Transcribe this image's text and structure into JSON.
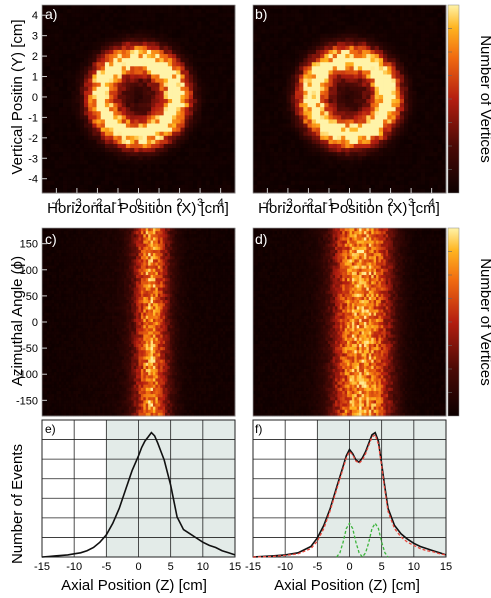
{
  "chart_data": [
    {
      "panel": "a)",
      "type": "heatmap",
      "xlabel": "Horizontal Position (X) [cm]",
      "ylabel": "Vertical Positin (Y) [cm]",
      "xlim": [
        -4.7,
        4.7
      ],
      "ylim": [
        -4.7,
        4.5
      ],
      "xticks": [
        -4,
        -3,
        -2,
        -1,
        0,
        1,
        2,
        3,
        4
      ],
      "yticks": [
        4,
        3,
        2,
        1,
        0,
        -1,
        -2,
        -3,
        -4
      ],
      "distribution": {
        "shape": "ring",
        "center": [
          0,
          0
        ],
        "radius_cm": 2.0,
        "width_cm": 0.65
      },
      "colorbar_label": "Number of Vertices"
    },
    {
      "panel": "b)",
      "type": "heatmap",
      "xlabel": "Horizontal Position (X) [cm]",
      "xlim": [
        -4.7,
        4.7
      ],
      "ylim": [
        -4.7,
        4.5
      ],
      "xticks": [
        -4,
        -3,
        -2,
        -1,
        0,
        1,
        2,
        3,
        4
      ],
      "distribution": {
        "shape": "ring",
        "center": [
          0,
          0
        ],
        "radius_cm": 2.0,
        "width_cm": 0.65
      }
    },
    {
      "panel": "c)",
      "type": "heatmap",
      "ylabel": "Azimuthal Angle (ϕ)",
      "xlim": [
        -15,
        15
      ],
      "ylim": [
        -180,
        180
      ],
      "yticks": [
        150,
        100,
        50,
        0,
        -50,
        -100,
        -150
      ],
      "distribution": {
        "shape": "band",
        "z_center_cm": 2.0,
        "z_width_cm": 2.6
      },
      "colorbar_label": "Number of Vertices"
    },
    {
      "panel": "d)",
      "type": "heatmap",
      "xlim": [
        -15,
        15
      ],
      "ylim": [
        -180,
        180
      ],
      "distribution": {
        "shape": "double-band",
        "z_centers_cm": [
          0,
          4
        ],
        "z_width_cm": 3.0
      }
    },
    {
      "panel": "e)",
      "type": "line",
      "xlabel": "Axial Position (Z) [cm]",
      "ylabel": "Number of Events",
      "xlim": [
        -15,
        15
      ],
      "ylim": [
        0,
        130
      ],
      "xticks": [
        -15,
        -10,
        -5,
        0,
        5,
        10,
        15
      ],
      "shaded_region": [
        -5,
        15
      ],
      "series": [
        {
          "color": "#111111",
          "x": [
            -15,
            -14,
            -13,
            -12,
            -11,
            -10,
            -9,
            -8,
            -7,
            -6,
            -5,
            -4,
            -3,
            -2,
            -1,
            0,
            0.5,
            1,
            1.5,
            2,
            2.5,
            3,
            3.5,
            4,
            5,
            6,
            7,
            8,
            9,
            10,
            11,
            12,
            13,
            14,
            15
          ],
          "y": [
            0,
            0.5,
            1,
            1.5,
            2,
            3,
            4,
            6,
            9,
            14,
            21,
            32,
            46,
            64,
            82,
            96,
            104,
            110,
            114,
            118,
            115,
            108,
            100,
            92,
            68,
            38,
            26,
            22,
            18,
            14,
            11,
            9,
            6,
            4,
            2
          ]
        }
      ]
    },
    {
      "panel": "f)",
      "type": "line",
      "xlabel": "Axial Position (Z) [cm]",
      "xlim": [
        -15,
        15
      ],
      "ylim": [
        0,
        130
      ],
      "xticks": [
        -15,
        -10,
        -5,
        0,
        5,
        10,
        15
      ],
      "shaded_region": [
        -5,
        15
      ],
      "series": [
        {
          "color": "#111111",
          "x": [
            -15,
            -12,
            -10,
            -8,
            -6,
            -5,
            -4,
            -3,
            -2,
            -1,
            -0.5,
            0,
            0.5,
            1,
            1.5,
            2,
            2.5,
            3,
            3.5,
            4,
            4.5,
            5,
            5.5,
            6,
            7,
            8,
            9,
            10,
            11,
            12,
            13,
            14,
            15
          ],
          "y": [
            0,
            1,
            2,
            4,
            10,
            18,
            30,
            46,
            66,
            86,
            96,
            102,
            98,
            92,
            90,
            94,
            100,
            108,
            116,
            118,
            110,
            88,
            66,
            46,
            30,
            22,
            17,
            13,
            10,
            8,
            6,
            4,
            2
          ]
        },
        {
          "color": "#e8463c",
          "x": [
            -15,
            -12,
            -10,
            -8,
            -6,
            -5,
            -4,
            -3,
            -2,
            -1,
            -0.5,
            0,
            0.5,
            1,
            1.5,
            2,
            2.5,
            3,
            3.5,
            4,
            4.5,
            5,
            5.5,
            6,
            7,
            8,
            9,
            10,
            11,
            12,
            13,
            14,
            15
          ],
          "y": [
            0,
            0.5,
            1.5,
            3,
            8,
            15,
            27,
            44,
            64,
            84,
            94,
            100,
            97,
            91,
            89,
            92,
            98,
            106,
            114,
            116,
            107,
            86,
            63,
            43,
            27,
            19,
            14,
            11,
            8,
            6,
            5,
            3,
            2
          ]
        },
        {
          "color": "#3cb43c",
          "x": [
            -2,
            -1.5,
            -1,
            -0.5,
            0,
            0.5,
            1,
            1.5,
            2,
            2.5,
            3,
            3.5,
            4,
            4.5,
            5,
            5.5,
            6
          ],
          "y": [
            0,
            4,
            14,
            27,
            32,
            27,
            14,
            4,
            0,
            4,
            14,
            27,
            32,
            27,
            14,
            4,
            0
          ]
        }
      ]
    }
  ]
}
